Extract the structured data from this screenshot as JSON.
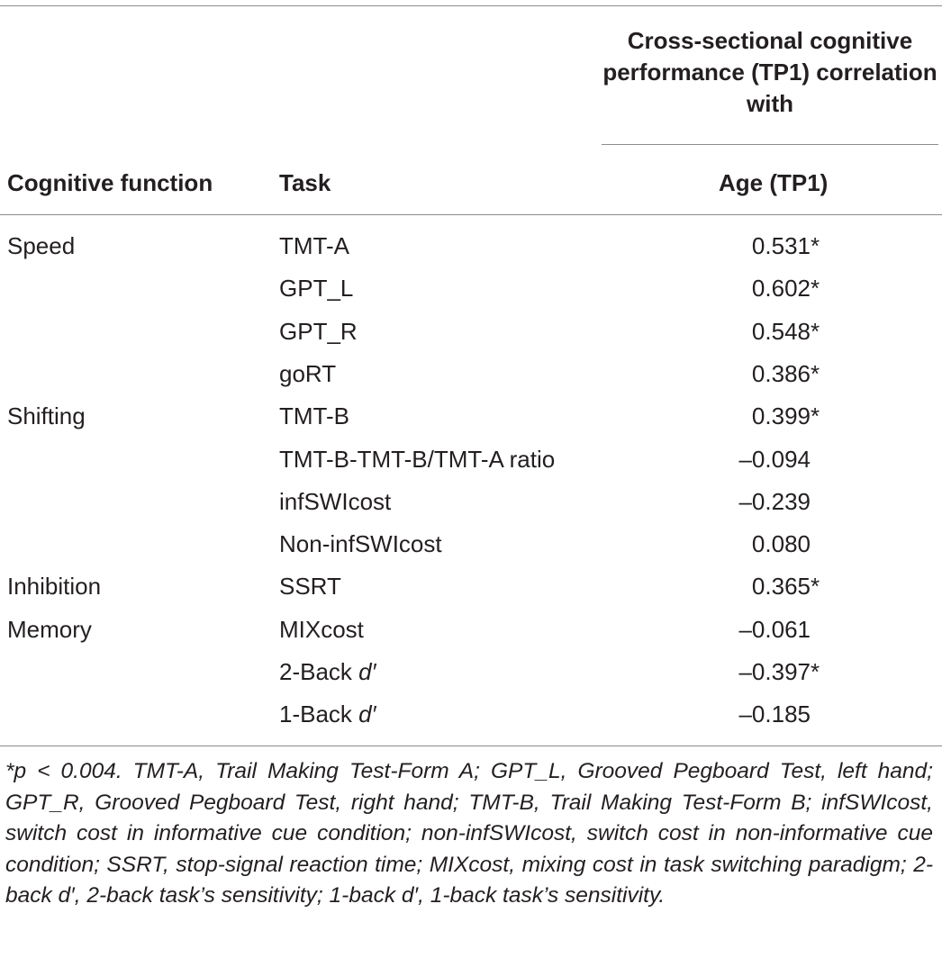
{
  "table": {
    "header": {
      "group_title": "Cross-sectional cognitive performance (TP1) correlation with",
      "col_function": "Cognitive function",
      "col_task": "Task",
      "col_age": "Age (TP1)"
    },
    "rows": [
      {
        "function": "Speed",
        "task": "TMT-A",
        "value": "0.531",
        "sig": "*"
      },
      {
        "function": "",
        "task": "GPT_L",
        "value": "0.602",
        "sig": "*"
      },
      {
        "function": "",
        "task": "GPT_R",
        "value": "0.548",
        "sig": "*"
      },
      {
        "function": "",
        "task": "goRT",
        "value": "0.386",
        "sig": "*"
      },
      {
        "function": "Shifting",
        "task": "TMT-B",
        "value": "0.399",
        "sig": "*"
      },
      {
        "function": "",
        "task": "TMT-B-TMT-B/TMT-A ratio",
        "value": "–0.094",
        "sig": ""
      },
      {
        "function": "",
        "task": "infSWIcost",
        "value": "–0.239",
        "sig": ""
      },
      {
        "function": "",
        "task": "Non-infSWIcost",
        "value": "0.080",
        "sig": ""
      },
      {
        "function": "Inhibition",
        "task": "SSRT",
        "value": "0.365",
        "sig": "*"
      },
      {
        "function": "Memory",
        "task": "MIXcost",
        "value": "–0.061",
        "sig": ""
      },
      {
        "function": "",
        "task": "2-Back d′",
        "value": "–0.397",
        "sig": "*"
      },
      {
        "function": "",
        "task": "1-Back d′",
        "value": "–0.185",
        "sig": ""
      }
    ],
    "footnote": "*p < 0.004. TMT-A, Trail Making Test-Form A; GPT_L, Grooved Pegboard Test, left hand; GPT_R, Grooved Pegboard Test, right hand; TMT-B, Trail Making Test-Form B; infSWIcost, switch cost in informative cue condition; non-infSWIcost, switch cost in non-informative cue condition; SSRT, stop-signal reaction time; MIXcost, mixing cost in task switching paradigm; 2-back d′, 2-back task’s sensitivity; 1-back d′, 1-back task’s sensitivity."
  }
}
